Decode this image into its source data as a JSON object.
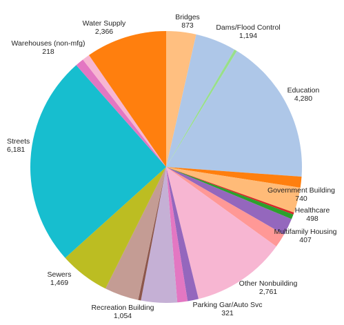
{
  "chart_data": {
    "type": "pie",
    "title": "",
    "start_angle_deg": 0,
    "direction": "clockwise",
    "slices": [
      {
        "label": "Bridges",
        "value": 873,
        "value_text": "873",
        "color": "#ffbf80",
        "show_label": true
      },
      {
        "label": "Dams/Flood Control",
        "value": 1194,
        "value_text": "1,194",
        "color": "#aec7e8",
        "show_label": true
      },
      {
        "label": "",
        "value": 80,
        "value_text": "",
        "color": "#98df8a",
        "show_label": false
      },
      {
        "label": "Education",
        "value": 4280,
        "value_text": "4,280",
        "color": "#aec7e8",
        "show_label": true
      },
      {
        "label": "",
        "value": 320,
        "value_text": "",
        "color": "#ff7f0e",
        "show_label": false
      },
      {
        "label": "Government Building",
        "value": 740,
        "value_text": "740",
        "color": "#ffbb78",
        "show_label": true
      },
      {
        "label": "",
        "value": 60,
        "value_text": "",
        "color": "#d62728",
        "show_label": false
      },
      {
        "label": "",
        "value": 140,
        "value_text": "",
        "color": "#2ca02c",
        "show_label": false
      },
      {
        "label": "Healthcare",
        "value": 498,
        "value_text": "498",
        "color": "#9467bd",
        "show_label": true
      },
      {
        "label": "Multifamily Housing",
        "value": 407,
        "value_text": "407",
        "color": "#ff9896",
        "show_label": true
      },
      {
        "label": "Other Nonbuilding",
        "value": 2761,
        "value_text": "2,761",
        "color": "#f7b6d2",
        "show_label": true
      },
      {
        "label": "Parking Gar/Auto Svc",
        "value": 321,
        "value_text": "321",
        "color": "#9467bd",
        "show_label": true
      },
      {
        "label": "",
        "value": 300,
        "value_text": "",
        "color": "#e377c2",
        "show_label": false
      },
      {
        "label": "Recreation Building",
        "value": 1054,
        "value_text": "1,054",
        "color": "#c5b0d5",
        "show_label": true
      },
      {
        "label": "",
        "value": 80,
        "value_text": "",
        "color": "#8c564b",
        "show_label": false
      },
      {
        "label": "",
        "value": 1000,
        "value_text": "",
        "color": "#c49c94",
        "show_label": false
      },
      {
        "label": "Sewers",
        "value": 1469,
        "value_text": "1,469",
        "color": "#bcbd22",
        "show_label": true
      },
      {
        "label": "Streets",
        "value": 6181,
        "value_text": "6,181",
        "color": "#17becf",
        "show_label": true
      },
      {
        "label": "",
        "value": 250,
        "value_text": "",
        "color": "#e377c2",
        "show_label": false
      },
      {
        "label": "Warehouses (non-mfg)",
        "value": 218,
        "value_text": "218",
        "color": "#f7b6d2",
        "show_label": true
      },
      {
        "label": "Water Supply",
        "value": 2366,
        "value_text": "2,366",
        "color": "#ff7f0e",
        "show_label": true
      }
    ]
  }
}
